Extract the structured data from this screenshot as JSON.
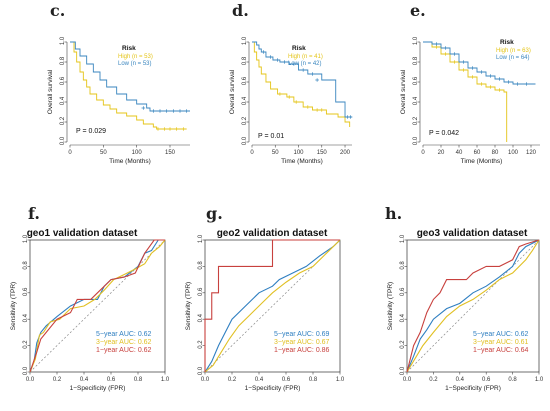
{
  "colors": {
    "high": "#e4c417",
    "low": "#3a86bf",
    "y5": "#2f7fc1",
    "y3": "#e1c024",
    "y1": "#c8413e",
    "diag": "#8a8a8a"
  },
  "chart_data": [
    {
      "panel": "c.",
      "type": "line",
      "kind": "km",
      "xlabel": "Time (Months)",
      "ylabel": "Overall survival",
      "xlim": [
        0,
        180
      ],
      "ylim": [
        0,
        1.0
      ],
      "xticks": [
        "0",
        "50",
        "100",
        "150"
      ],
      "xtick_values": [
        0,
        50,
        100,
        150
      ],
      "yticks": [
        "0.0",
        "0.2",
        "0.4",
        "0.6",
        "0.8",
        "1.0"
      ],
      "ytick_values": [
        0,
        0.2,
        0.4,
        0.6,
        0.8,
        1.0
      ],
      "legend_title": "Risk",
      "legend": [
        "High (n = 53)",
        "Low (n = 53)"
      ],
      "pvalue": "P = 0.029",
      "series": [
        {
          "name": "High (n = 53)",
          "colorKey": "high",
          "x": [
            0,
            6,
            10,
            15,
            20,
            25,
            30,
            40,
            50,
            60,
            70,
            85,
            100,
            110,
            125,
            130,
            175
          ],
          "y": [
            1.0,
            0.9,
            0.8,
            0.7,
            0.62,
            0.55,
            0.48,
            0.42,
            0.37,
            0.33,
            0.29,
            0.26,
            0.22,
            0.18,
            0.15,
            0.13,
            0.13
          ],
          "censor_x": [
            132,
            142,
            150,
            160,
            170
          ],
          "censor_y": [
            0.13,
            0.13,
            0.13,
            0.13,
            0.13
          ]
        },
        {
          "name": "Low (n = 53)",
          "colorKey": "low",
          "x": [
            0,
            8,
            15,
            25,
            35,
            45,
            55,
            70,
            85,
            100,
            115,
            120,
            180
          ],
          "y": [
            1.0,
            0.93,
            0.86,
            0.78,
            0.7,
            0.62,
            0.55,
            0.48,
            0.42,
            0.38,
            0.34,
            0.31,
            0.31
          ],
          "censor_x": [
            110,
            125,
            135,
            145,
            155,
            165,
            175
          ],
          "censor_y": [
            0.34,
            0.31,
            0.31,
            0.31,
            0.31,
            0.31,
            0.31
          ]
        }
      ]
    },
    {
      "panel": "d.",
      "type": "line",
      "kind": "km",
      "xlabel": "Time (Months)",
      "ylabel": "Overall survival",
      "xlim": [
        0,
        215
      ],
      "ylim": [
        0,
        1.0
      ],
      "xticks": [
        "0",
        "50",
        "100",
        "150",
        "200"
      ],
      "xtick_values": [
        0,
        50,
        100,
        150,
        200
      ],
      "yticks": [
        "0.0",
        "0.2",
        "0.4",
        "0.6",
        "0.8",
        "1.0"
      ],
      "ytick_values": [
        0,
        0.2,
        0.4,
        0.6,
        0.8,
        1.0
      ],
      "legend_title": "Risk",
      "legend": [
        "High (n = 41)",
        "Low (n = 42)"
      ],
      "pvalue": "P = 0.01",
      "series": [
        {
          "name": "High (n = 41)",
          "colorKey": "high",
          "x": [
            0,
            5,
            10,
            15,
            20,
            30,
            40,
            55,
            75,
            90,
            110,
            130,
            160,
            185,
            200,
            210
          ],
          "y": [
            1.0,
            0.9,
            0.82,
            0.75,
            0.68,
            0.6,
            0.53,
            0.48,
            0.45,
            0.4,
            0.35,
            0.32,
            0.28,
            0.25,
            0.2,
            0.15
          ],
          "censor_x": [
            60,
            80,
            95,
            120,
            140,
            150
          ],
          "censor_y": [
            0.48,
            0.45,
            0.4,
            0.35,
            0.32,
            0.32
          ]
        },
        {
          "name": "Low (n = 42)",
          "colorKey": "low",
          "x": [
            0,
            10,
            15,
            20,
            30,
            45,
            60,
            80,
            100,
            120,
            150,
            180,
            200,
            215
          ],
          "y": [
            1.0,
            0.97,
            0.93,
            0.9,
            0.85,
            0.82,
            0.8,
            0.78,
            0.72,
            0.68,
            0.62,
            0.4,
            0.25,
            0.25
          ],
          "censor_x": [
            25,
            40,
            55,
            70,
            90,
            110,
            130,
            140,
            205,
            212
          ],
          "censor_y": [
            0.9,
            0.85,
            0.82,
            0.8,
            0.78,
            0.72,
            0.68,
            0.62,
            0.25,
            0.25
          ]
        }
      ]
    },
    {
      "panel": "e.",
      "type": "line",
      "kind": "km",
      "xlabel": "Time (Months)",
      "ylabel": "Overall survival",
      "xlim": [
        0,
        130
      ],
      "ylim": [
        0,
        1.0
      ],
      "xticks": [
        "0",
        "20",
        "40",
        "60",
        "80",
        "100",
        "120"
      ],
      "xtick_values": [
        0,
        20,
        40,
        60,
        80,
        100,
        120
      ],
      "yticks": [
        "0.0",
        "0.2",
        "0.4",
        "0.6",
        "0.8",
        "1.0"
      ],
      "ytick_values": [
        0,
        0.2,
        0.4,
        0.6,
        0.8,
        1.0
      ],
      "legend_title": "Risk",
      "legend": [
        "High (n = 63)",
        "Low (n = 64)"
      ],
      "pvalue": "P = 0.042",
      "series": [
        {
          "name": "High (n = 63)",
          "colorKey": "high",
          "x": [
            0,
            10,
            20,
            30,
            40,
            50,
            60,
            70,
            80,
            90,
            92,
            93
          ],
          "y": [
            1.0,
            0.95,
            0.88,
            0.8,
            0.72,
            0.65,
            0.58,
            0.55,
            0.52,
            0.5,
            0.5,
            0.0
          ],
          "censor_x": [
            15,
            25,
            35,
            45,
            55,
            65,
            75,
            85
          ],
          "censor_y": [
            0.95,
            0.88,
            0.8,
            0.72,
            0.65,
            0.58,
            0.55,
            0.52
          ]
        },
        {
          "name": "Low (n = 64)",
          "colorKey": "low",
          "x": [
            0,
            10,
            20,
            30,
            40,
            50,
            60,
            70,
            80,
            90,
            100,
            125
          ],
          "y": [
            1.0,
            0.98,
            0.94,
            0.88,
            0.8,
            0.74,
            0.7,
            0.66,
            0.63,
            0.6,
            0.58,
            0.58
          ],
          "censor_x": [
            15,
            25,
            35,
            45,
            55,
            65,
            75,
            85,
            95,
            105,
            115
          ],
          "censor_y": [
            0.98,
            0.94,
            0.88,
            0.8,
            0.74,
            0.7,
            0.66,
            0.63,
            0.6,
            0.58,
            0.58
          ]
        }
      ]
    },
    {
      "panel": "f.",
      "type": "line",
      "kind": "roc",
      "title": "geo1 validation dataset",
      "xlabel": "1−Specificity (FPR)",
      "ylabel": "Sensitivity (TPR)",
      "xlim": [
        0,
        1
      ],
      "ylim": [
        0,
        1
      ],
      "xticks": [
        "0.0",
        "0.2",
        "0.4",
        "0.6",
        "0.8",
        "1.0"
      ],
      "xtick_values": [
        0,
        0.2,
        0.4,
        0.6,
        0.8,
        1.0
      ],
      "yticks": [
        "0.0",
        "0.2",
        "0.4",
        "0.6",
        "0.8",
        "1.0"
      ],
      "ytick_values": [
        0,
        0.2,
        0.4,
        0.6,
        0.8,
        1.0
      ],
      "legend": [
        "5−year AUC: 0.62",
        "3−year AUC: 0.62",
        "1−year AUC: 0.62"
      ],
      "series": [
        {
          "name": "5−year AUC: 0.62",
          "colorKey": "y5",
          "x": [
            0,
            0.03,
            0.05,
            0.08,
            0.12,
            0.2,
            0.3,
            0.4,
            0.5,
            0.55,
            0.6,
            0.7,
            0.8,
            0.85,
            0.9,
            0.95,
            1.0
          ],
          "y": [
            0,
            0.08,
            0.22,
            0.3,
            0.35,
            0.42,
            0.5,
            0.55,
            0.55,
            0.65,
            0.7,
            0.72,
            0.8,
            0.9,
            0.92,
            1.0,
            1.0
          ]
        },
        {
          "name": "3−year AUC: 0.62",
          "colorKey": "y3",
          "x": [
            0,
            0.04,
            0.07,
            0.1,
            0.15,
            0.22,
            0.3,
            0.4,
            0.48,
            0.55,
            0.62,
            0.7,
            0.78,
            0.85,
            0.9,
            0.96,
            1.0
          ],
          "y": [
            0,
            0.1,
            0.28,
            0.3,
            0.38,
            0.4,
            0.48,
            0.5,
            0.55,
            0.62,
            0.7,
            0.74,
            0.78,
            0.82,
            0.9,
            0.95,
            1.0
          ]
        },
        {
          "name": "1−year AUC: 0.62",
          "colorKey": "y1",
          "x": [
            0,
            0.05,
            0.08,
            0.12,
            0.2,
            0.3,
            0.35,
            0.45,
            0.5,
            0.6,
            0.7,
            0.78,
            0.85,
            0.92,
            1.0
          ],
          "y": [
            0,
            0.15,
            0.25,
            0.3,
            0.4,
            0.45,
            0.55,
            0.55,
            0.6,
            0.7,
            0.72,
            0.75,
            0.9,
            1.0,
            1.0
          ]
        }
      ]
    },
    {
      "panel": "g.",
      "type": "line",
      "kind": "roc",
      "title": "geo2 validation dataset",
      "xlabel": "1−Specificity (FPR)",
      "ylabel": "Sensitivity (TPR)",
      "xlim": [
        0,
        1
      ],
      "ylim": [
        0,
        1
      ],
      "xticks": [
        "0.0",
        "0.2",
        "0.4",
        "0.6",
        "0.8",
        "1.0"
      ],
      "xtick_values": [
        0,
        0.2,
        0.4,
        0.6,
        0.8,
        1.0
      ],
      "yticks": [
        "0.0",
        "0.2",
        "0.4",
        "0.6",
        "0.8",
        "1.0"
      ],
      "ytick_values": [
        0,
        0.2,
        0.4,
        0.6,
        0.8,
        1.0
      ],
      "legend": [
        "5−year AUC: 0.69",
        "3−year AUC: 0.67",
        "1−year AUC: 0.86"
      ],
      "series": [
        {
          "name": "5−year AUC: 0.69",
          "colorKey": "y5",
          "x": [
            0,
            0.05,
            0.1,
            0.15,
            0.2,
            0.3,
            0.4,
            0.5,
            0.55,
            0.65,
            0.75,
            0.85,
            0.95,
            1.0
          ],
          "y": [
            0,
            0.08,
            0.2,
            0.3,
            0.4,
            0.5,
            0.6,
            0.65,
            0.7,
            0.75,
            0.8,
            0.88,
            0.95,
            1.0
          ]
        },
        {
          "name": "3−year AUC: 0.67",
          "colorKey": "y3",
          "x": [
            0,
            0.06,
            0.12,
            0.18,
            0.25,
            0.35,
            0.45,
            0.5,
            0.6,
            0.7,
            0.8,
            0.9,
            1.0
          ],
          "y": [
            0,
            0.05,
            0.15,
            0.25,
            0.35,
            0.45,
            0.55,
            0.6,
            0.68,
            0.75,
            0.8,
            0.9,
            1.0
          ]
        },
        {
          "name": "1−year AUC: 0.86",
          "colorKey": "y1",
          "x": [
            0,
            0.0,
            0.05,
            0.05,
            0.1,
            0.1,
            0.5,
            0.5,
            0.95,
            0.95,
            1.0
          ],
          "y": [
            0,
            0.4,
            0.4,
            0.6,
            0.6,
            0.8,
            0.8,
            1.0,
            1.0,
            1.0,
            1.0
          ]
        }
      ]
    },
    {
      "panel": "h.",
      "type": "line",
      "kind": "roc",
      "title": "geo3 validation dataset",
      "xlabel": "1−Specificity (FPR)",
      "ylabel": "Sensitivity (TPR)",
      "xlim": [
        0,
        1
      ],
      "ylim": [
        0,
        1
      ],
      "xticks": [
        "0.0",
        "0.2",
        "0.4",
        "0.6",
        "0.8",
        "1.0"
      ],
      "xtick_values": [
        0,
        0.2,
        0.4,
        0.6,
        0.8,
        1.0
      ],
      "yticks": [
        "0.0",
        "0.2",
        "0.4",
        "0.6",
        "0.8",
        "1.0"
      ],
      "ytick_values": [
        0,
        0.2,
        0.4,
        0.6,
        0.8,
        1.0
      ],
      "legend": [
        "5−year AUC: 0.62",
        "3−year AUC: 0.61",
        "1−year AUC: 0.64"
      ],
      "series": [
        {
          "name": "5−year AUC: 0.62",
          "colorKey": "y5",
          "x": [
            0,
            0.05,
            0.1,
            0.15,
            0.2,
            0.3,
            0.4,
            0.5,
            0.6,
            0.7,
            0.8,
            0.85,
            0.9,
            1.0
          ],
          "y": [
            0,
            0.12,
            0.25,
            0.32,
            0.4,
            0.48,
            0.52,
            0.6,
            0.65,
            0.72,
            0.8,
            0.9,
            0.95,
            1.0
          ]
        },
        {
          "name": "3−year AUC: 0.61",
          "colorKey": "y3",
          "x": [
            0,
            0.06,
            0.12,
            0.2,
            0.3,
            0.4,
            0.5,
            0.6,
            0.7,
            0.8,
            0.9,
            0.95,
            1.0
          ],
          "y": [
            0,
            0.1,
            0.2,
            0.3,
            0.42,
            0.5,
            0.55,
            0.62,
            0.7,
            0.75,
            0.85,
            0.92,
            1.0
          ]
        },
        {
          "name": "1−year AUC: 0.64",
          "colorKey": "y1",
          "x": [
            0,
            0.05,
            0.1,
            0.15,
            0.2,
            0.25,
            0.3,
            0.45,
            0.5,
            0.6,
            0.7,
            0.8,
            0.85,
            0.9,
            1.0
          ],
          "y": [
            0,
            0.2,
            0.3,
            0.45,
            0.55,
            0.6,
            0.7,
            0.7,
            0.75,
            0.8,
            0.8,
            0.85,
            0.95,
            0.97,
            1.0
          ]
        }
      ]
    }
  ]
}
